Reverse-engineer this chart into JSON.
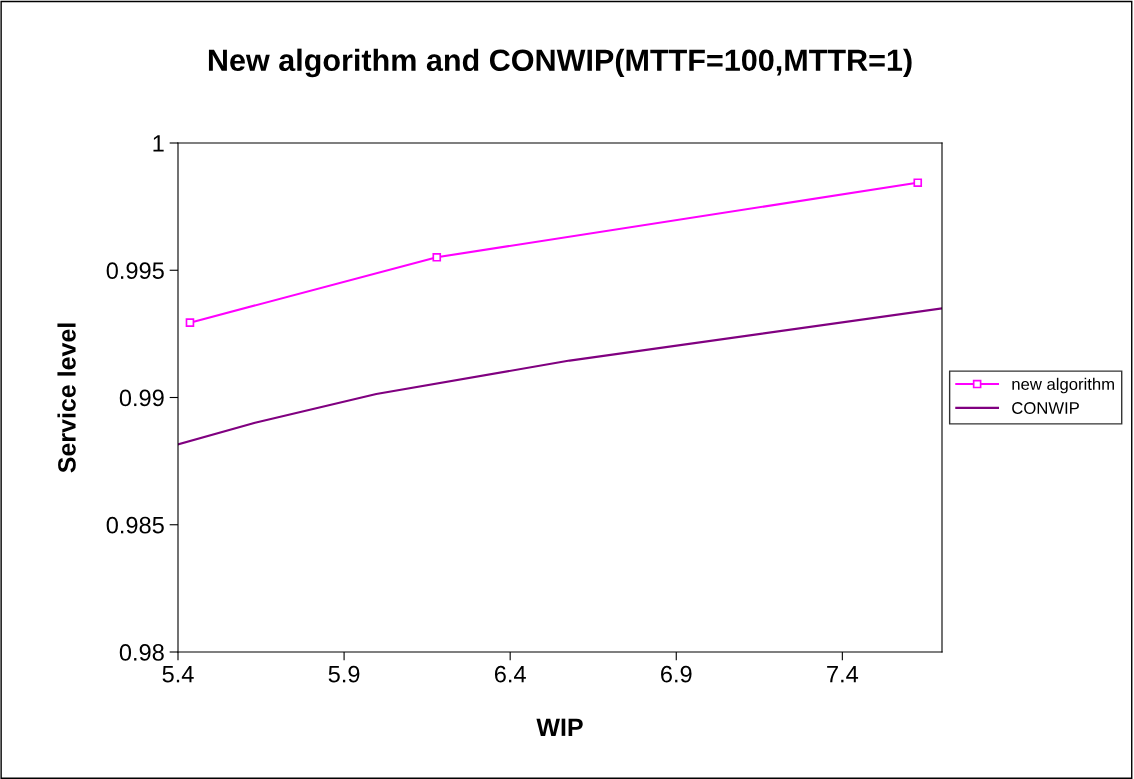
{
  "chart_data": {
    "type": "line",
    "title": "New algorithm and CONWIP(MTTF=100,MTTR=1)",
    "xlabel": "WIP",
    "ylabel": "Service level",
    "series": [
      {
        "name": "new algorithm",
        "color": "#ff00ff",
        "marker": "square",
        "x": [
          5.436,
          6.179,
          7.627
        ],
        "values": [
          0.99294,
          0.99551,
          0.99844
        ]
      },
      {
        "name": "CONWIP",
        "color": "#800080",
        "marker": "none",
        "x": [
          5.4,
          5.632,
          5.997,
          6.579,
          7.7
        ],
        "values": [
          0.98816,
          0.98901,
          0.99014,
          0.99145,
          0.9935
        ]
      }
    ],
    "xlim": [
      5.4,
      7.7
    ],
    "xticks": [
      5.4,
      5.9,
      6.4,
      6.9,
      7.4
    ],
    "ylim": [
      0.98,
      1
    ],
    "yticks": [
      0.98,
      0.985,
      0.99,
      0.995,
      1
    ],
    "grid": false,
    "legend": "right"
  }
}
